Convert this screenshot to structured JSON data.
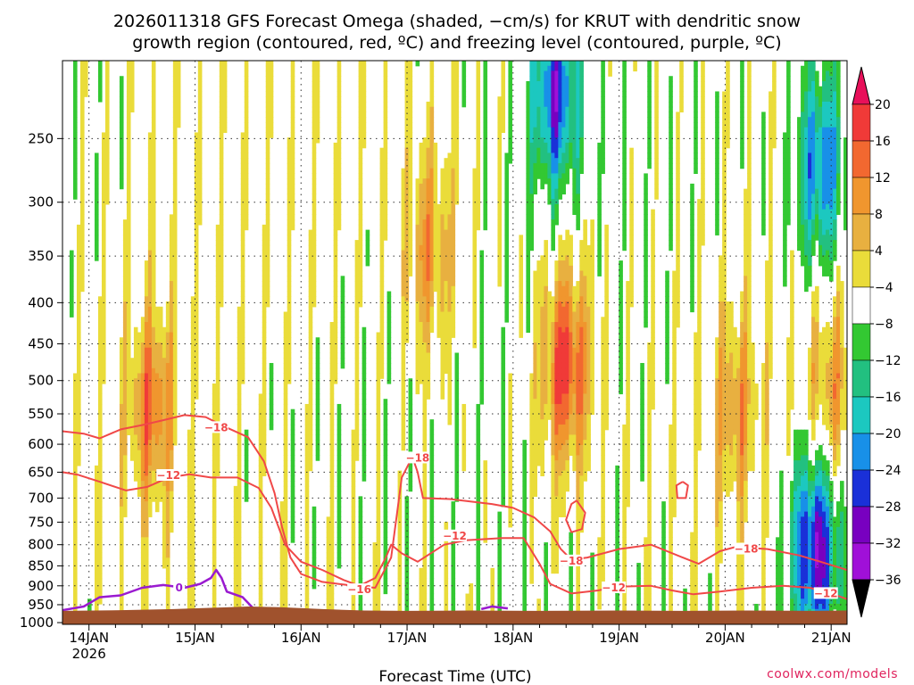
{
  "chart_data": {
    "type": "heatmap",
    "title_lines": [
      "2026011318 GFS Forecast Omega (shaded, −cm/s) for KRUT with dendritic snow",
      "growth region (contoured, red, ºC) and freezing level (contoured, purple, ºC)"
    ],
    "xlabel": "Forecast Time (UTC)",
    "ylabel": "",
    "y_scale": "log",
    "y_reversed": true,
    "y_range": [
      1005,
      200
    ],
    "y_ticks": [
      250,
      300,
      350,
      400,
      450,
      500,
      550,
      600,
      650,
      700,
      750,
      800,
      850,
      900,
      950,
      1000
    ],
    "x_range": [
      13.75,
      21.15
    ],
    "x_ticks": [
      {
        "x": 14,
        "label": "14JAN",
        "sublabel": "2026"
      },
      {
        "x": 15,
        "label": "15JAN"
      },
      {
        "x": 16,
        "label": "16JAN"
      },
      {
        "x": 17,
        "label": "17JAN"
      },
      {
        "x": 18,
        "label": "18JAN"
      },
      {
        "x": 19,
        "label": "19JAN"
      },
      {
        "x": 20,
        "label": "20JAN"
      },
      {
        "x": 21,
        "label": "21JAN"
      }
    ],
    "grid": true,
    "colorbar": {
      "levels": [
        20,
        16,
        12,
        8,
        4,
        -4,
        -8,
        -12,
        -16,
        -20,
        -24,
        -28,
        -32,
        -36
      ],
      "colors": [
        "#e8105a",
        "#f03a38",
        "#f26830",
        "#f0962e",
        "#e8b040",
        "#eadc3a",
        "#ffffff",
        "#33c832",
        "#22c080",
        "#1cc8c0",
        "#1890e8",
        "#1a30d8",
        "#7800c0",
        "#a010d8",
        "#a8a8a8",
        "#000000"
      ]
    },
    "omega_features": [
      {
        "x": 18.5,
        "p": 480,
        "value": 20
      },
      {
        "x": 14.6,
        "p": 540,
        "value": 16
      },
      {
        "x": 20.1,
        "p": 540,
        "value": 12
      },
      {
        "x": 21.0,
        "p": 520,
        "value": 12
      },
      {
        "x": 17.2,
        "p": 340,
        "value": 12
      },
      {
        "x": 18.4,
        "p": 220,
        "value": -24
      },
      {
        "x": 20.9,
        "p": 270,
        "value": -20
      },
      {
        "x": 20.85,
        "p": 810,
        "value": -28
      }
    ],
    "terrain_color": "#a0522d",
    "contour_colors": {
      "dgz": "#f04848",
      "freezing": "#9a1ad0"
    },
    "contour_labels": [
      {
        "text": "−18",
        "x": 15.2,
        "p": 572
      },
      {
        "text": "−12",
        "x": 14.75,
        "p": 656
      },
      {
        "text": "−18",
        "x": 17.1,
        "p": 624
      },
      {
        "text": "−12",
        "x": 17.45,
        "p": 780
      },
      {
        "text": "−18",
        "x": 18.55,
        "p": 838
      },
      {
        "text": "−16",
        "x": 16.55,
        "p": 910
      },
      {
        "text": "−12",
        "x": 18.95,
        "p": 905
      },
      {
        "text": "−18",
        "x": 20.2,
        "p": 810
      },
      {
        "text": "−12",
        "x": 20.95,
        "p": 920
      },
      {
        "text": "0",
        "x": 14.85,
        "p": 905
      }
    ]
  },
  "credit": "coolwx.com/models"
}
